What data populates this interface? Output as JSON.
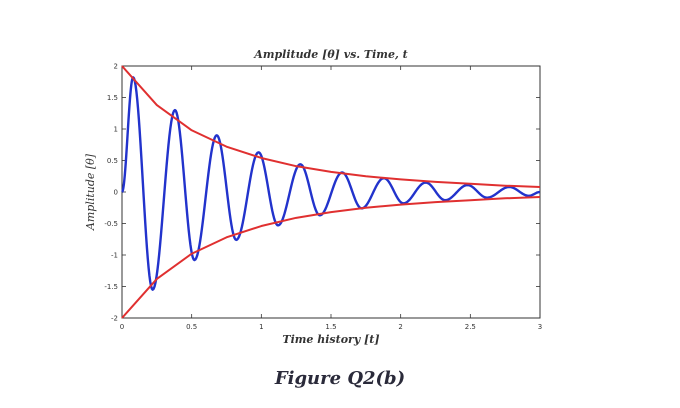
{
  "figure_caption": "Figure Q2(b)",
  "chart_data": {
    "type": "line",
    "title": "Amplitude [θ] vs. Time, t",
    "xlabel": "Time history [t]",
    "ylabel": "Amplitude [θ]",
    "xlim": [
      0,
      3
    ],
    "ylim": [
      -2,
      2
    ],
    "x_ticks": [
      0,
      0.5,
      1,
      1.5,
      2,
      2.5,
      3
    ],
    "x_tick_labels": [
      "0",
      "0.5",
      "1",
      "1.5",
      "2",
      "2.5",
      "3"
    ],
    "y_ticks": [
      -2,
      -1.5,
      -1,
      -0.5,
      0,
      0.5,
      1,
      1.5,
      2
    ],
    "y_tick_labels": [
      "-2",
      "-1.5",
      "-1",
      "-0.5",
      "0",
      "0.5",
      "1",
      "1.5",
      "2"
    ],
    "grid": false,
    "series": [
      {
        "color": "#2233cc",
        "x": [
          0,
          0.08,
          0.22,
          0.38,
          0.52,
          0.68,
          0.82,
          0.98,
          1.12,
          1.28,
          1.42,
          1.58,
          1.72,
          1.88,
          2.02,
          2.18,
          2.32,
          2.48,
          2.62,
          2.78,
          2.92,
          3.0
        ],
        "y": [
          0,
          1.82,
          -1.55,
          1.3,
          -1.08,
          0.9,
          -0.76,
          0.63,
          -0.53,
          0.44,
          -0.37,
          0.31,
          -0.26,
          0.22,
          -0.18,
          0.15,
          -0.13,
          0.11,
          -0.09,
          0.08,
          -0.06,
          0
        ]
      },
      {
        "color": "#e03030",
        "x": [
          0,
          0.25,
          0.5,
          0.75,
          1,
          1.25,
          1.5,
          1.75,
          2,
          2.25,
          2.5,
          2.75,
          3
        ],
        "y": [
          2,
          1.38,
          0.98,
          0.72,
          0.54,
          0.41,
          0.32,
          0.25,
          0.2,
          0.16,
          0.13,
          0.1,
          0.08
        ]
      },
      {
        "color": "#e03030",
        "x": [
          0,
          0.25,
          0.5,
          0.75,
          1,
          1.25,
          1.5,
          1.75,
          2,
          2.25,
          2.5,
          2.75,
          3
        ],
        "y": [
          -2,
          -1.38,
          -0.98,
          -0.72,
          -0.54,
          -0.41,
          -0.32,
          -0.25,
          -0.2,
          -0.16,
          -0.13,
          -0.1,
          -0.08
        ]
      }
    ]
  }
}
